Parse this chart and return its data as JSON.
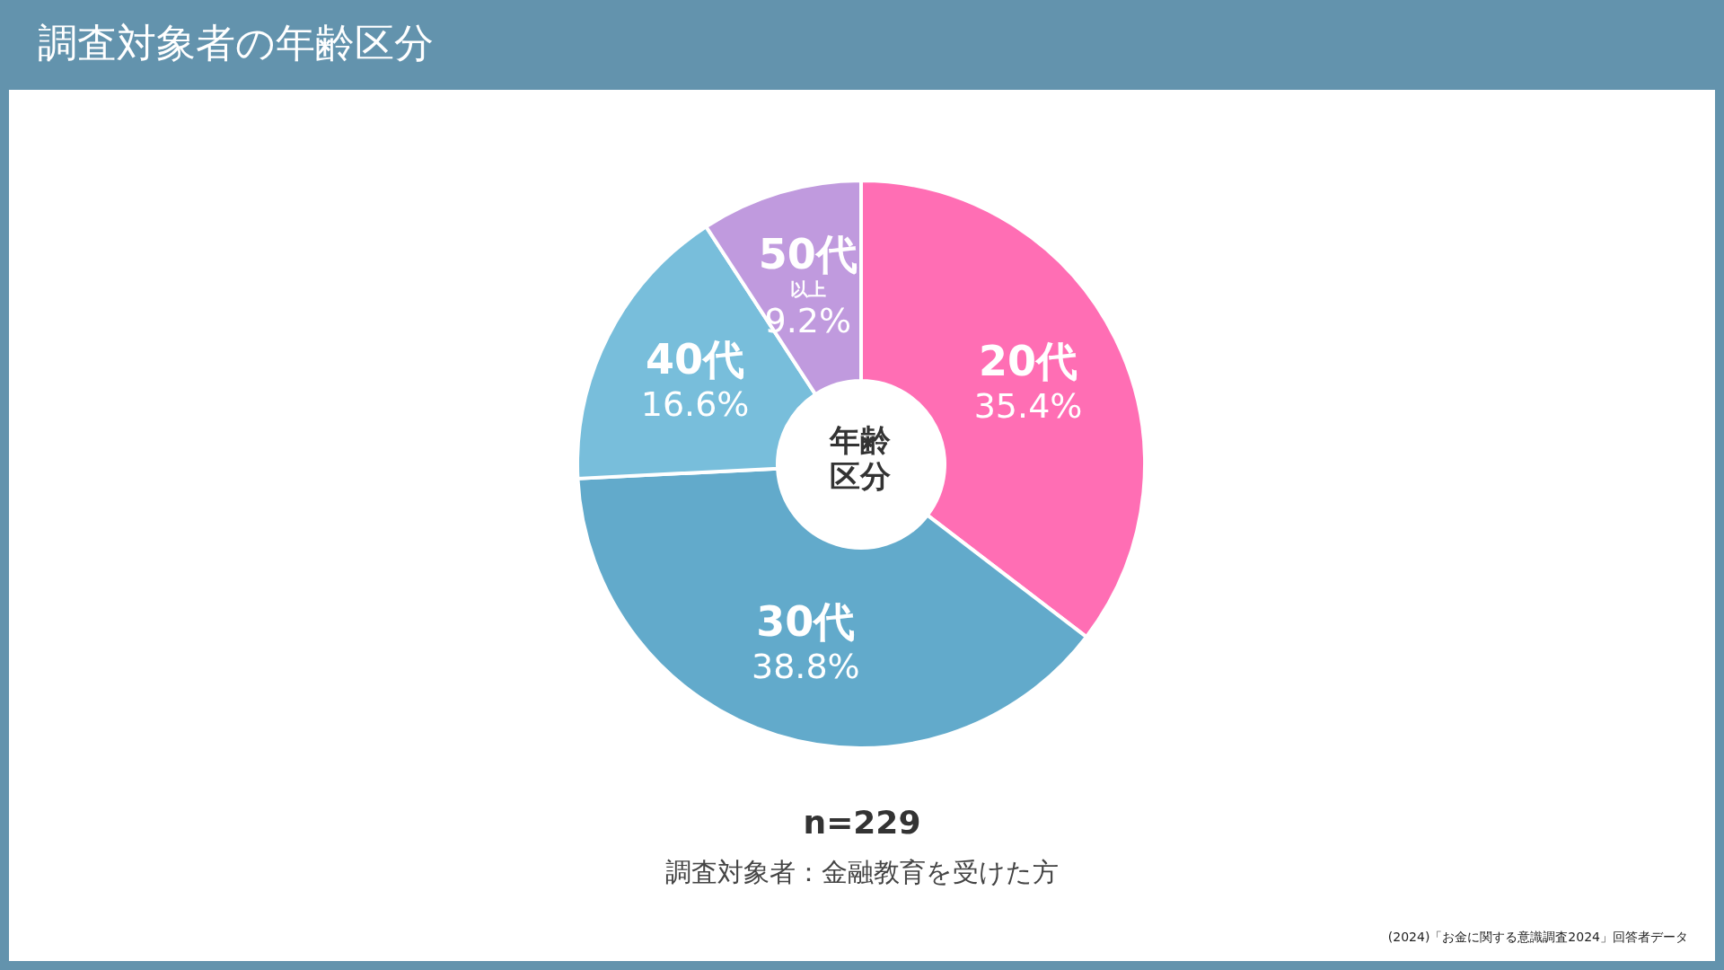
{
  "chart_data": {
    "type": "donut",
    "title": "調査対象者の年齢区分",
    "categories": [
      "20代",
      "30代",
      "40代",
      "50代以上"
    ],
    "values": [
      35.4,
      38.8,
      16.6,
      9.2
    ],
    "value_labels": [
      "35.4%",
      "38.8%",
      "16.6%",
      "9.2%"
    ],
    "colors": [
      "#ff6eb4",
      "#62aacb",
      "#78bedb",
      "#c09ade"
    ],
    "legend": false,
    "annotations": [
      "年齢区分",
      "n=229",
      "調査対象者：金融教育を受けた方",
      "(2024)「お金に関する意識調査2024」回答者データ"
    ]
  }
}
